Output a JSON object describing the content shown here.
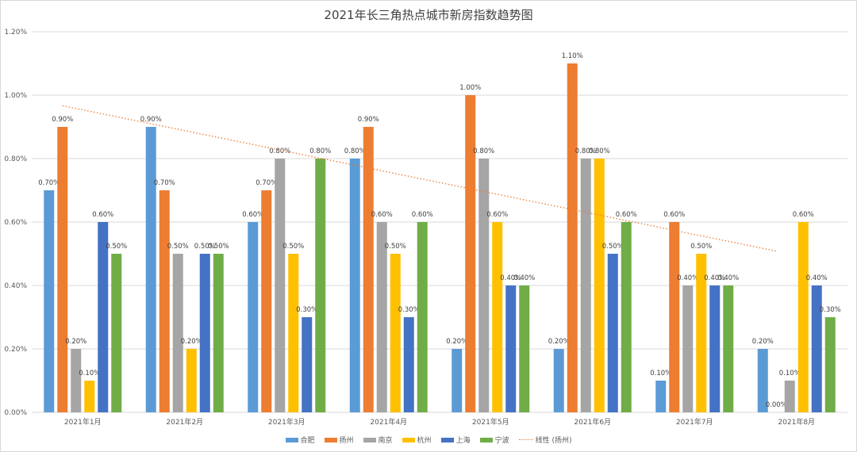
{
  "chart_data": {
    "type": "bar",
    "title": "2021年长三角热点城市新房指数趋势图",
    "categories": [
      "2021年1月",
      "2021年2月",
      "2021年3月",
      "2021年4月",
      "2021年5月",
      "2021年6月",
      "2021年7月",
      "2021年8月"
    ],
    "series": [
      {
        "name": "合肥",
        "color": "#5b9bd5",
        "values": [
          0.7,
          0.9,
          0.6,
          0.8,
          0.2,
          0.2,
          0.1,
          0.2
        ]
      },
      {
        "name": "扬州",
        "color": "#ed7d31",
        "values": [
          0.9,
          0.7,
          0.7,
          0.9,
          1.0,
          1.1,
          0.6,
          0.0
        ]
      },
      {
        "name": "南京",
        "color": "#a5a5a5",
        "values": [
          0.2,
          0.5,
          0.8,
          0.6,
          0.8,
          0.8,
          0.4,
          0.1
        ]
      },
      {
        "name": "杭州",
        "color": "#ffc000",
        "values": [
          0.1,
          0.2,
          0.5,
          0.5,
          0.6,
          0.8,
          0.5,
          0.6
        ]
      },
      {
        "name": "上海",
        "color": "#4472c4",
        "values": [
          0.6,
          0.5,
          0.3,
          0.3,
          0.4,
          0.5,
          0.4,
          0.4
        ]
      },
      {
        "name": "宁波",
        "color": "#70ad47",
        "values": [
          0.5,
          0.5,
          0.8,
          0.6,
          0.4,
          0.6,
          0.4,
          0.3
        ]
      }
    ],
    "trendline": {
      "name": "线性 (扬州)",
      "series": "扬州",
      "color": "#ed7d31"
    },
    "ylim": [
      0,
      1.2
    ],
    "yticks": [
      0,
      0.2,
      0.4,
      0.6,
      0.8,
      1.0,
      1.2
    ],
    "ytick_labels": [
      "0.00%",
      "0.20%",
      "0.40%",
      "0.60%",
      "0.80%",
      "1.00%",
      "1.20%"
    ],
    "xlabel": "",
    "ylabel": "",
    "grid": true,
    "legend_position": "bottom"
  }
}
